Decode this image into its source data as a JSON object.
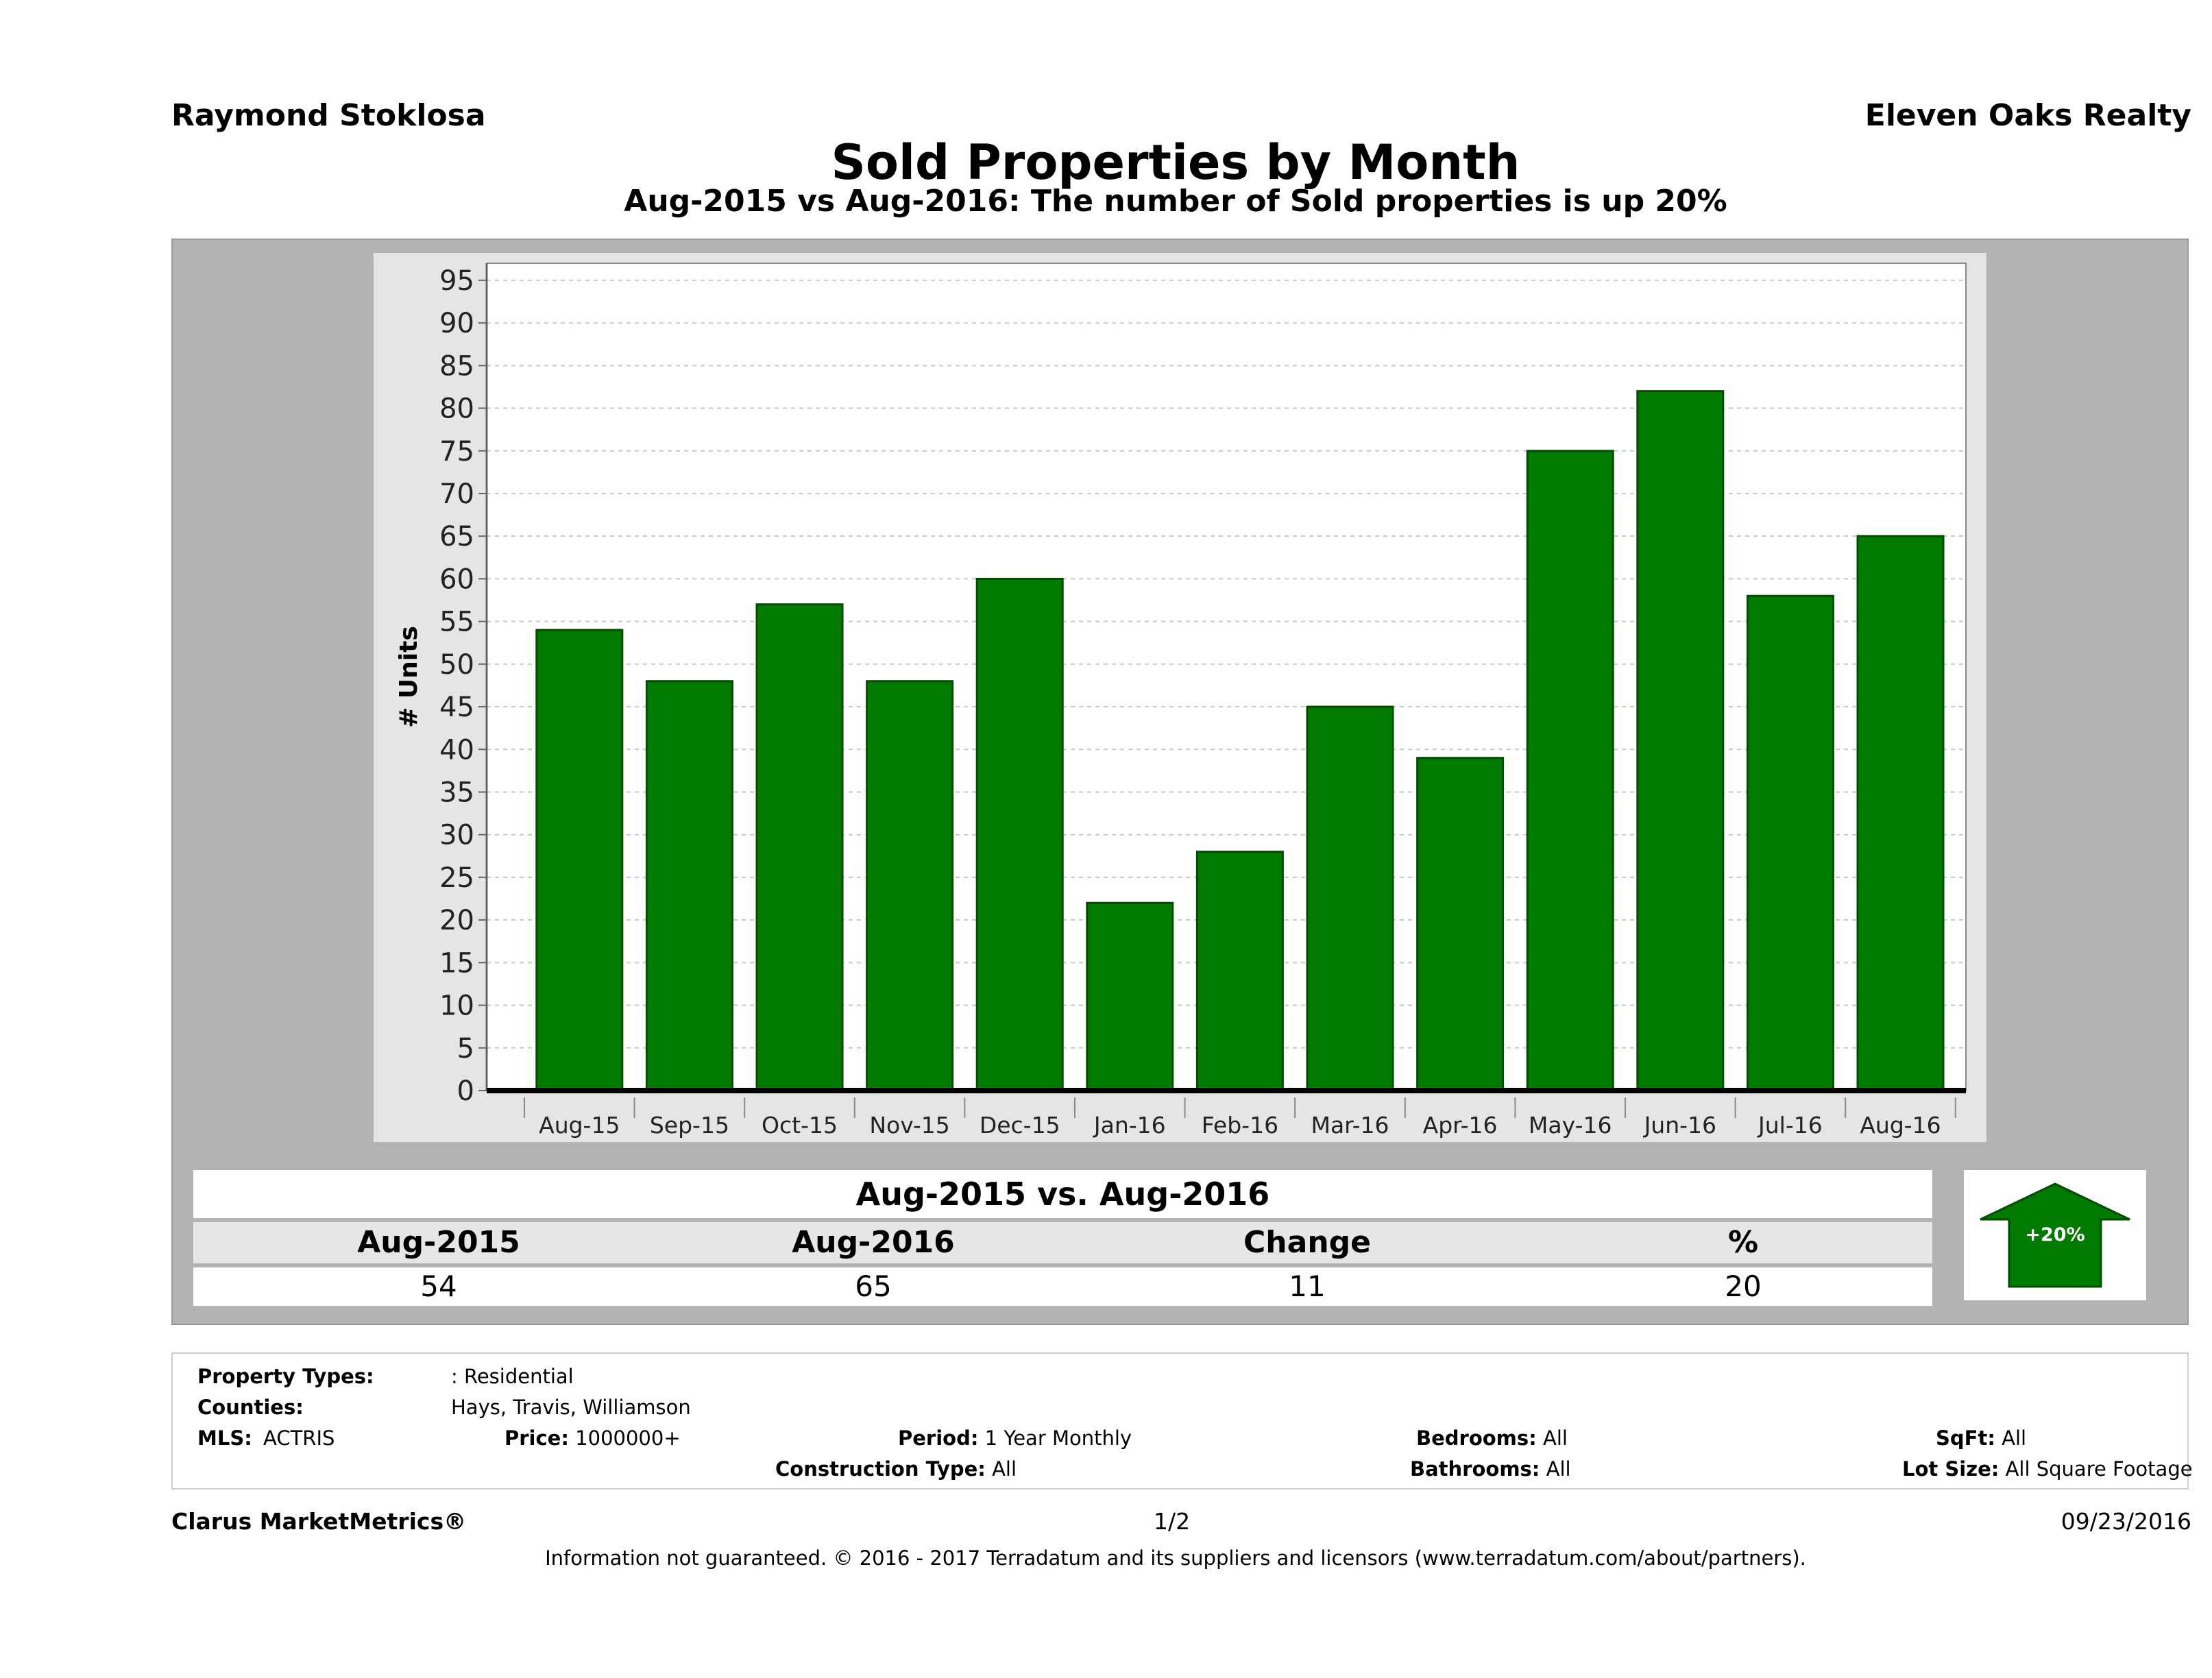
{
  "header": {
    "agent": "Raymond Stoklosa",
    "company": "Eleven Oaks Realty",
    "title": "Sold Properties by Month",
    "subtitle": "Aug-2015 vs Aug-2016: The number of Sold  properties is up 20%"
  },
  "colors": {
    "bar": "#007a00",
    "bar_border": "#004d00",
    "panel": "#e5e5e5",
    "outer": "#b3b3b3"
  },
  "chart_data": {
    "type": "bar",
    "title": "Sold Properties by Month",
    "xlabel": "",
    "ylabel": "# Units",
    "categories": [
      "Aug-15",
      "Sep-15",
      "Oct-15",
      "Nov-15",
      "Dec-15",
      "Jan-16",
      "Feb-16",
      "Mar-16",
      "Apr-16",
      "May-16",
      "Jun-16",
      "Jul-16",
      "Aug-16"
    ],
    "values": [
      54,
      48,
      57,
      48,
      60,
      22,
      28,
      45,
      39,
      75,
      82,
      58,
      65
    ],
    "ylim": [
      0,
      97
    ],
    "yticks": [
      0,
      5,
      10,
      15,
      20,
      25,
      30,
      35,
      40,
      45,
      50,
      55,
      60,
      65,
      70,
      75,
      80,
      85,
      90,
      95
    ],
    "grid": true
  },
  "summary": {
    "heading": "Aug-2015 vs. Aug-2016",
    "labels": [
      "Aug-2015",
      "Aug-2016",
      "Change",
      "%"
    ],
    "values": [
      "54",
      "65",
      "11",
      "20"
    ],
    "badge": "+20%",
    "badge_icon": "up-arrow-icon"
  },
  "filters": {
    "property_types_label": "Property Types:",
    "property_types_value": ": Residential",
    "counties_label": "Counties:",
    "counties_value": "Hays, Travis, Williamson",
    "mls_label": "MLS:",
    "mls_value": "ACTRIS",
    "price_label": "Price:",
    "price_value": "1000000+",
    "period_label": "Period:",
    "period_value": "1 Year Monthly",
    "construction_label": "Construction Type:",
    "construction_value": "All",
    "bedrooms_label": "Bedrooms:",
    "bedrooms_value": "All",
    "bathrooms_label": "Bathrooms:",
    "bathrooms_value": "All",
    "sqft_label": "SqFt:",
    "sqft_value": "All",
    "lotsize_label": "Lot Size:",
    "lotsize_value": "All Square Footage"
  },
  "footer": {
    "brand": "Clarus MarketMetrics®",
    "page": "1/2",
    "date": "09/23/2016",
    "disclaimer": "Information not guaranteed. © 2016 - 2017 Terradatum and its suppliers and licensors (www.terradatum.com/about/partners)."
  }
}
